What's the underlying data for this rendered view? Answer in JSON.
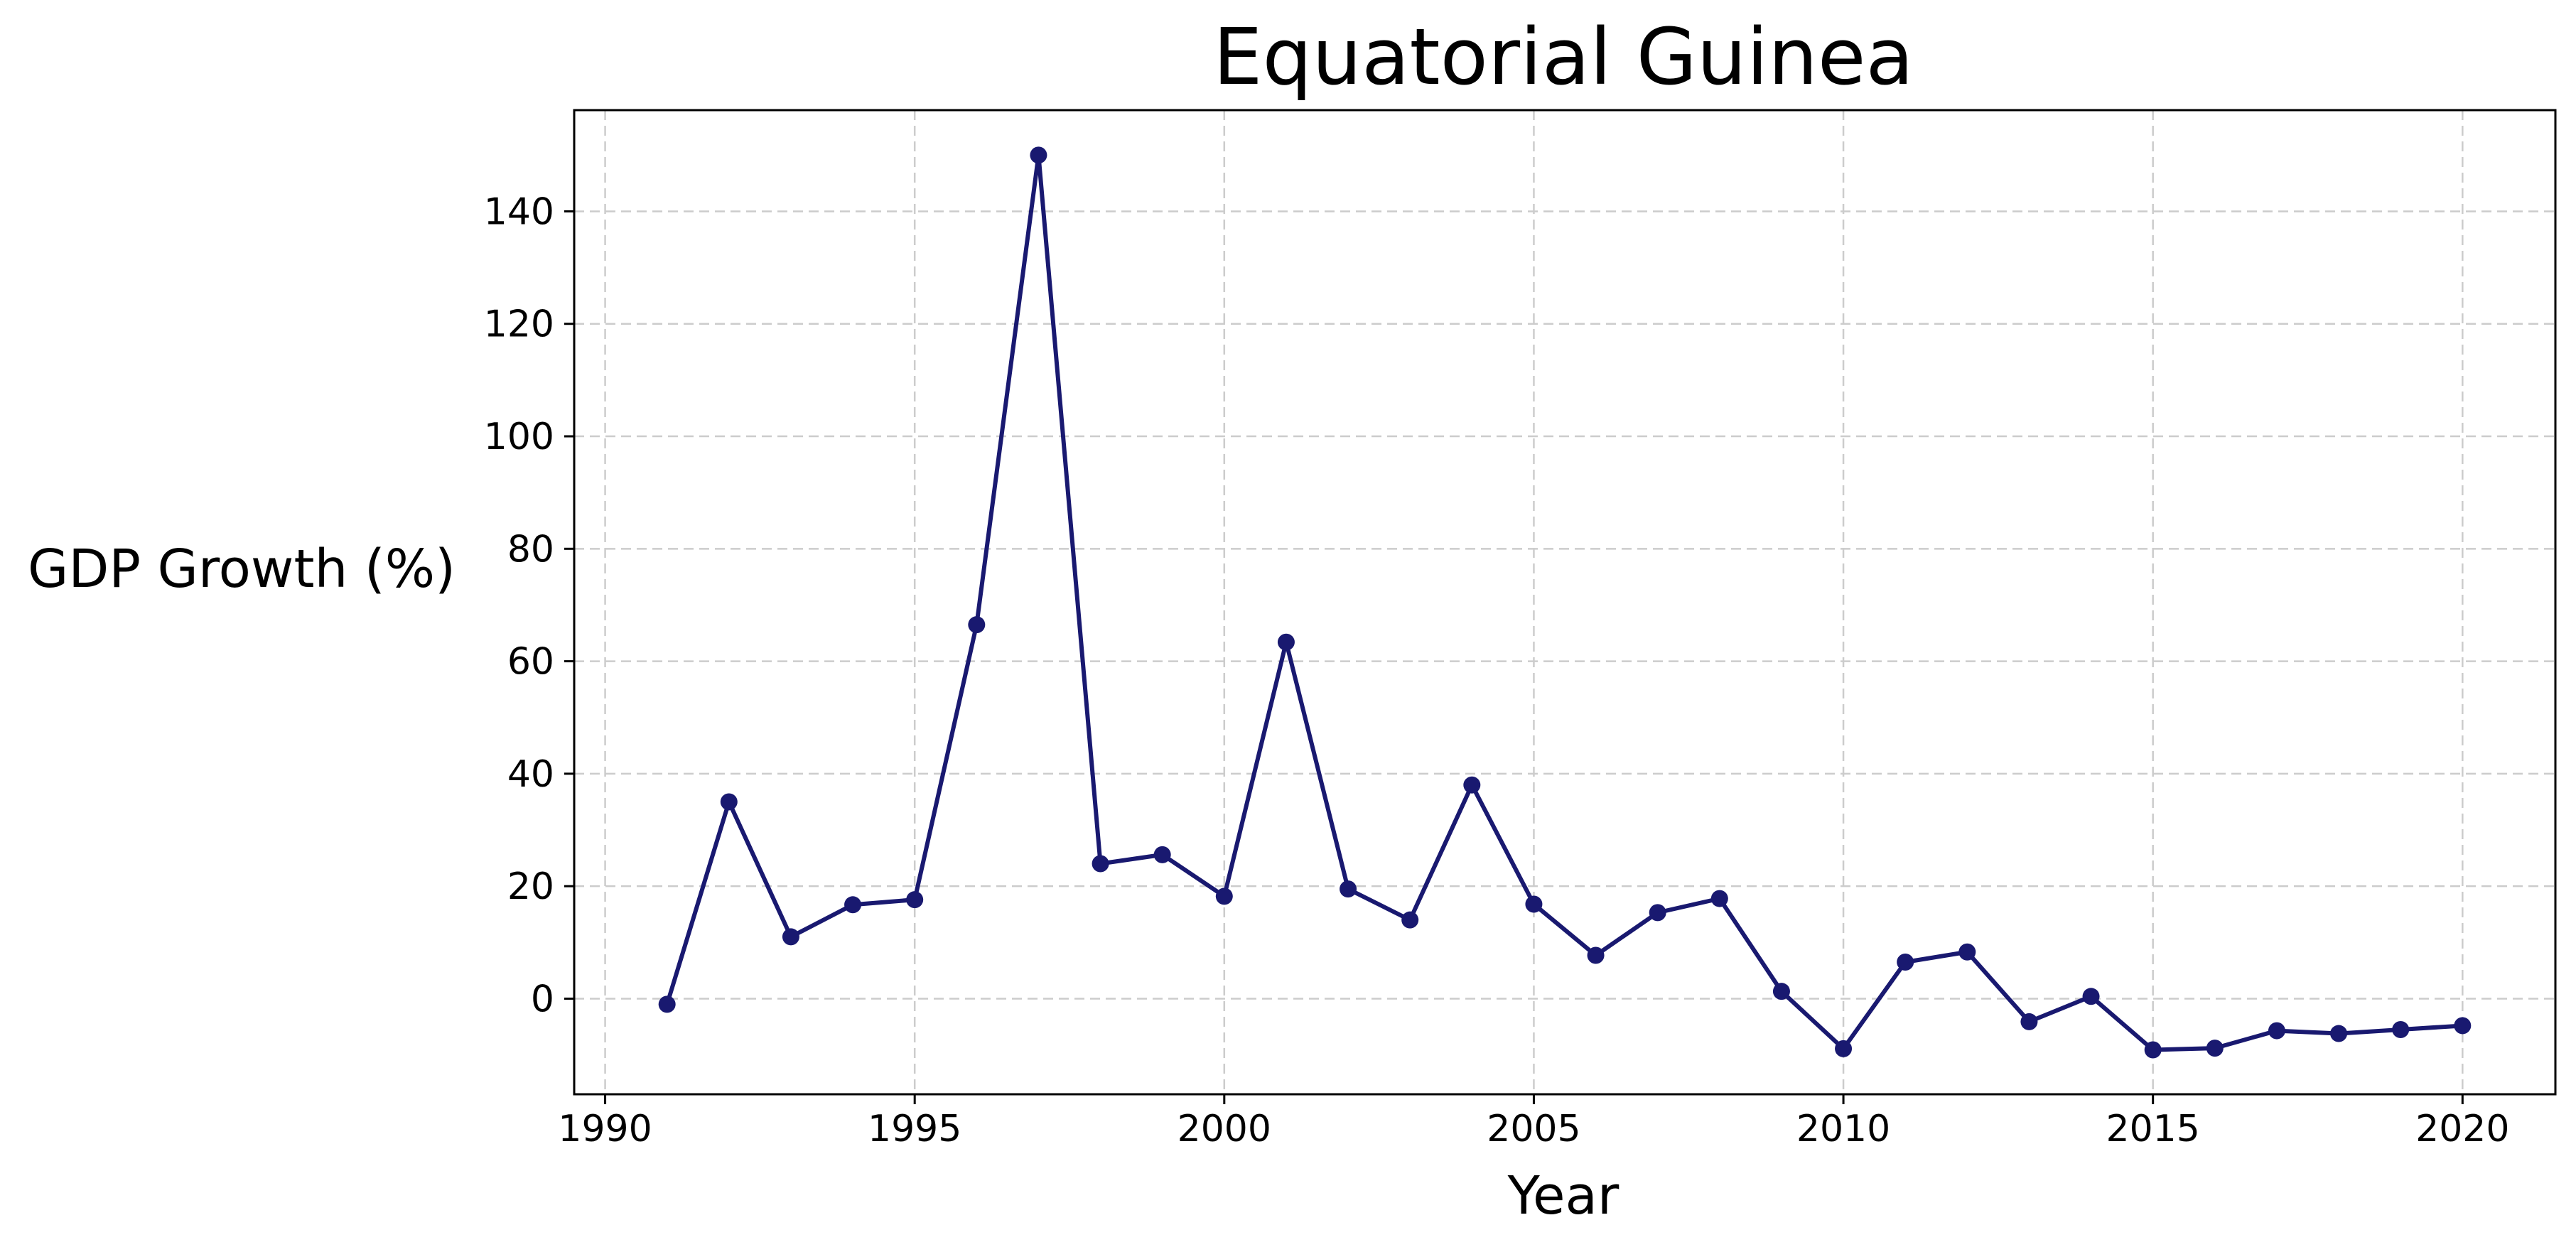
{
  "chart_data": {
    "type": "line",
    "title": "Equatorial Guinea",
    "xlabel": "Year",
    "ylabel": "GDP Growth (%)",
    "xlim": [
      1989.5,
      2021.5
    ],
    "ylim": [
      -17,
      158
    ],
    "xticks": [
      1990,
      1995,
      2000,
      2005,
      2010,
      2015,
      2020
    ],
    "yticks": [
      0,
      20,
      40,
      60,
      80,
      100,
      120,
      140
    ],
    "grid": true,
    "color": "#191970",
    "series": [
      {
        "x": [
          1991,
          1992,
          1993,
          1994,
          1995,
          1996,
          1997,
          1998,
          1999,
          2000,
          2001,
          2002,
          2003,
          2004,
          2005,
          2006,
          2007,
          2008,
          2009,
          2010,
          2011,
          2012,
          2013,
          2014,
          2015,
          2016,
          2017,
          2018,
          2019,
          2020
        ],
        "y": [
          -1,
          35,
          11,
          16.7,
          17.6,
          66.5,
          150,
          24,
          25.6,
          18.2,
          63.4,
          19.5,
          14,
          38,
          16.8,
          7.7,
          15.3,
          17.8,
          1.3,
          -8.9,
          6.5,
          8.3,
          -4.1,
          0.4,
          -9.1,
          -8.8,
          -5.7,
          -6.2,
          -5.5,
          -4.8
        ]
      }
    ]
  }
}
